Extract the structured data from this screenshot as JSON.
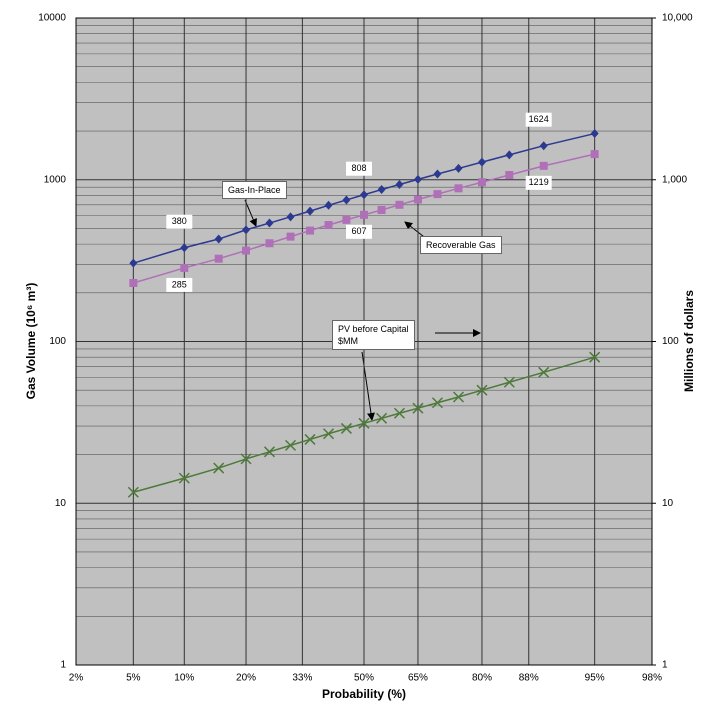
{
  "chart_data": {
    "type": "line",
    "x_label": "Probability (%)",
    "y_label": "Gas Volume (10⁶ m³)",
    "y2_label": "Millions of dollars",
    "x": [
      5,
      10,
      15,
      20,
      25,
      30,
      35,
      40,
      45,
      50,
      55,
      60,
      65,
      70,
      75,
      80,
      85,
      90,
      95
    ],
    "x_scale": "probability",
    "xlim": [
      2,
      98
    ],
    "xticks": [
      {
        "value": 2,
        "label": "2%"
      },
      {
        "value": 5,
        "label": "5%"
      },
      {
        "value": 10,
        "label": "10%"
      },
      {
        "value": 20,
        "label": "20%"
      },
      {
        "value": 33,
        "label": "33%"
      },
      {
        "value": 50,
        "label": "50%"
      },
      {
        "value": 65,
        "label": "65%"
      },
      {
        "value": 80,
        "label": "80%"
      },
      {
        "value": 88,
        "label": "88%"
      },
      {
        "value": 95,
        "label": "95%"
      },
      {
        "value": 98,
        "label": "98%"
      }
    ],
    "y_scale": "log",
    "ylim": [
      1,
      10000
    ],
    "yticks": [
      1,
      10,
      100,
      1000,
      10000
    ],
    "y2lim": [
      1,
      10000
    ],
    "y2ticks": [
      1,
      10,
      100,
      {
        "value": 1000,
        "label": "1,000"
      },
      {
        "value": 10000,
        "label": "10,000"
      }
    ],
    "grid": true,
    "minor_grid": true,
    "series": [
      {
        "name": "Gas-In-Place",
        "color": "#2b3990",
        "marker": "diamond",
        "values": [
          305,
          380,
          430,
          490,
          540,
          590,
          640,
          695,
          750,
          808,
          870,
          935,
          1005,
          1085,
          1175,
          1285,
          1425,
          1624,
          1930
        ],
        "value_labels": [
          null,
          "380",
          null,
          null,
          null,
          null,
          null,
          null,
          null,
          "808",
          null,
          null,
          null,
          null,
          null,
          null,
          null,
          "1624",
          null
        ]
      },
      {
        "name": "Recoverable Gas",
        "color": "#b070b8",
        "marker": "square",
        "values": [
          230,
          285,
          325,
          365,
          405,
          445,
          485,
          525,
          565,
          607,
          650,
          700,
          755,
          815,
          885,
          965,
          1070,
          1219,
          1440
        ],
        "value_labels": [
          null,
          "285",
          null,
          null,
          null,
          null,
          null,
          null,
          null,
          "607",
          null,
          null,
          null,
          null,
          null,
          null,
          null,
          "1219",
          null
        ]
      },
      {
        "name": "PV before Capital\n$MM",
        "color": "#4d7a3a",
        "marker": "x",
        "axis": "y2",
        "values": [
          11.7,
          14.3,
          16.5,
          18.8,
          20.8,
          22.8,
          24.8,
          26.9,
          29,
          31.2,
          33.5,
          36,
          38.7,
          41.8,
          45.4,
          50,
          56,
          64.5,
          80
        ]
      }
    ]
  }
}
